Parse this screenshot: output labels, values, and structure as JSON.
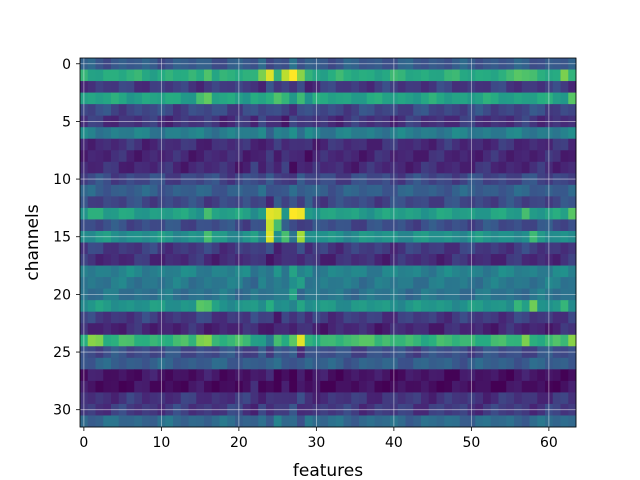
{
  "chart_data": {
    "type": "heatmap",
    "title": "",
    "xlabel": "features",
    "ylabel": "channels",
    "n_cols": 64,
    "n_rows": 32,
    "xlim": [
      -0.5,
      63.5
    ],
    "ylim": [
      31.5,
      -0.5
    ],
    "x_ticks": [
      0,
      10,
      20,
      30,
      40,
      50,
      60
    ],
    "y_ticks": [
      0,
      5,
      10,
      15,
      20,
      25,
      30
    ],
    "grid": true,
    "colormap": "viridis",
    "value_range": [
      0,
      1
    ],
    "row_base": [
      0.28,
      0.62,
      0.18,
      0.58,
      0.22,
      0.16,
      0.42,
      0.14,
      0.12,
      0.13,
      0.22,
      0.3,
      0.22,
      0.56,
      0.24,
      0.5,
      0.18,
      0.14,
      0.44,
      0.4,
      0.38,
      0.52,
      0.18,
      0.12,
      0.66,
      0.24,
      0.3,
      0.06,
      0.04,
      0.16,
      0.18,
      0.34
    ],
    "hot_spots": [
      {
        "row": 1,
        "col": 24,
        "value": 0.95
      },
      {
        "row": 1,
        "col": 26,
        "value": 0.9
      },
      {
        "row": 1,
        "col": 27,
        "value": 1.0
      },
      {
        "row": 1,
        "col": 28,
        "value": 0.82
      },
      {
        "row": 1,
        "col": 23,
        "value": 0.8
      },
      {
        "row": 1,
        "col": 16,
        "value": 0.72
      },
      {
        "row": 1,
        "col": 56,
        "value": 0.74
      },
      {
        "row": 1,
        "col": 57,
        "value": 0.72
      },
      {
        "row": 1,
        "col": 58,
        "value": 0.7
      },
      {
        "row": 1,
        "col": 62,
        "value": 0.8
      },
      {
        "row": 3,
        "col": 16,
        "value": 0.76
      },
      {
        "row": 3,
        "col": 15,
        "value": 0.7
      },
      {
        "row": 3,
        "col": 25,
        "value": 0.72
      },
      {
        "row": 3,
        "col": 28,
        "value": 0.68
      },
      {
        "row": 3,
        "col": 63,
        "value": 0.74
      },
      {
        "row": 13,
        "col": 24,
        "value": 0.96
      },
      {
        "row": 13,
        "col": 25,
        "value": 0.94
      },
      {
        "row": 13,
        "col": 27,
        "value": 1.0
      },
      {
        "row": 13,
        "col": 28,
        "value": 0.98
      },
      {
        "row": 13,
        "col": 16,
        "value": 0.7
      },
      {
        "row": 13,
        "col": 57,
        "value": 0.7
      },
      {
        "row": 13,
        "col": 63,
        "value": 0.74
      },
      {
        "row": 13,
        "col": 1,
        "value": 0.64
      },
      {
        "row": 13,
        "col": 2,
        "value": 0.64
      },
      {
        "row": 14,
        "col": 24,
        "value": 0.92
      },
      {
        "row": 14,
        "col": 25,
        "value": 0.7
      },
      {
        "row": 15,
        "col": 24,
        "value": 0.95
      },
      {
        "row": 15,
        "col": 28,
        "value": 0.86
      },
      {
        "row": 15,
        "col": 16,
        "value": 0.7
      },
      {
        "row": 15,
        "col": 26,
        "value": 0.7
      },
      {
        "row": 15,
        "col": 58,
        "value": 0.68
      },
      {
        "row": 21,
        "col": 15,
        "value": 0.74
      },
      {
        "row": 21,
        "col": 16,
        "value": 0.72
      },
      {
        "row": 21,
        "col": 58,
        "value": 0.78
      },
      {
        "row": 21,
        "col": 56,
        "value": 0.66
      },
      {
        "row": 21,
        "col": 62,
        "value": 0.66
      },
      {
        "row": 24,
        "col": 1,
        "value": 0.82
      },
      {
        "row": 24,
        "col": 2,
        "value": 0.8
      },
      {
        "row": 24,
        "col": 15,
        "value": 0.8
      },
      {
        "row": 24,
        "col": 16,
        "value": 0.82
      },
      {
        "row": 24,
        "col": 28,
        "value": 0.96
      },
      {
        "row": 24,
        "col": 36,
        "value": 0.74
      },
      {
        "row": 24,
        "col": 37,
        "value": 0.74
      },
      {
        "row": 24,
        "col": 57,
        "value": 0.8
      },
      {
        "row": 24,
        "col": 63,
        "value": 0.82
      },
      {
        "row": 24,
        "col": 23,
        "value": 0.55
      },
      {
        "row": 24,
        "col": 24,
        "value": 0.4
      },
      {
        "row": 18,
        "col": 27,
        "value": 0.58
      },
      {
        "row": 19,
        "col": 28,
        "value": 0.56
      },
      {
        "row": 20,
        "col": 27,
        "value": 0.58
      },
      {
        "row": 27,
        "col": 27,
        "value": 0.0
      },
      {
        "row": 28,
        "col": 27,
        "value": 0.0
      }
    ]
  }
}
